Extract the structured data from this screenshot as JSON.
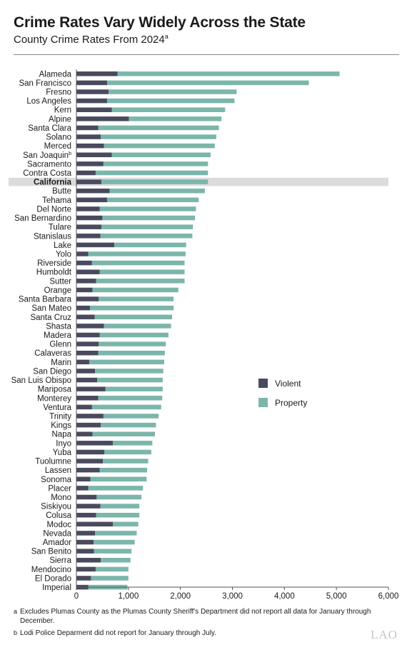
{
  "title": "Crime Rates Vary Widely Across the State",
  "subtitle": "County Crime Rates From 2024",
  "subtitle_note": "a",
  "footnotes": [
    {
      "mark": "a",
      "text": "Excludes Plumas County as the Plumas County Sheriff's Department did not report all data for January through December."
    },
    {
      "mark": "b",
      "text": "Lodi Police Deparment did not report for January through July."
    }
  ],
  "logo": "LAO",
  "chart_data": {
    "type": "bar",
    "orientation": "horizontal",
    "stacked": true,
    "legend_position": "right-middle",
    "highlight_category": "California",
    "highlight_color": "#dcdcdc",
    "xlim": [
      0,
      6000
    ],
    "xticks": [
      0,
      1000,
      2000,
      3000,
      4000,
      5000,
      6000
    ],
    "xtick_labels": [
      "0",
      "1,000",
      "2,000",
      "3,000",
      "4,000",
      "5,000",
      "6,000"
    ],
    "grid": false,
    "categories": [
      "Alameda",
      "San Francisco",
      "Fresno",
      "Los Angeles",
      "Kern",
      "Alpine",
      "Santa Clara",
      "Solano",
      "Merced",
      "San Joaquin",
      "Sacramento",
      "Contra Costa",
      "California",
      "Butte",
      "Tehama",
      "Del Norte",
      "San Bernardino",
      "Tulare",
      "Stanislaus",
      "Lake",
      "Yolo",
      "Riverside",
      "Humboldt",
      "Sutter",
      "Orange",
      "Santa Barbara",
      "San Mateo",
      "Santa Cruz",
      "Shasta",
      "Madera",
      "Glenn",
      "Calaveras",
      "Marin",
      "San Diego",
      "San Luis Obispo",
      "Mariposa",
      "Monterey",
      "Ventura",
      "Trinity",
      "Kings",
      "Napa",
      "Inyo",
      "Yuba",
      "Tuolumne",
      "Lassen",
      "Sonoma",
      "Placer",
      "Mono",
      "Siskiyou",
      "Colusa",
      "Modoc",
      "Nevada",
      "Amador",
      "San Benito",
      "Sierra",
      "Mendocino",
      "El Dorado",
      "Imperial"
    ],
    "category_notes": {
      "San Joaquin": "b"
    },
    "series": [
      {
        "name": "Violent",
        "color": "#4a4a5e",
        "values": [
          790,
          590,
          620,
          590,
          680,
          1010,
          420,
          470,
          530,
          680,
          520,
          370,
          480,
          640,
          590,
          450,
          500,
          480,
          460,
          730,
          230,
          300,
          450,
          380,
          310,
          430,
          260,
          350,
          530,
          450,
          430,
          420,
          250,
          360,
          400,
          560,
          420,
          300,
          520,
          470,
          310,
          700,
          540,
          510,
          450,
          270,
          230,
          390,
          460,
          380,
          700,
          360,
          330,
          340,
          470,
          370,
          280,
          230
        ]
      },
      {
        "name": "Property",
        "color": "#7cb6ab",
        "values": [
          4270,
          3880,
          2460,
          2450,
          2180,
          1780,
          2320,
          2220,
          2130,
          1900,
          2010,
          2160,
          2050,
          1830,
          1760,
          1850,
          1780,
          1760,
          1770,
          1380,
          1870,
          1780,
          1630,
          1700,
          1650,
          1440,
          1610,
          1490,
          1290,
          1320,
          1290,
          1280,
          1440,
          1310,
          1260,
          1100,
          1230,
          1330,
          1060,
          1060,
          1200,
          760,
          900,
          870,
          910,
          1080,
          1050,
          860,
          750,
          830,
          490,
          800,
          790,
          720,
          570,
          630,
          720,
          750
        ]
      }
    ]
  }
}
